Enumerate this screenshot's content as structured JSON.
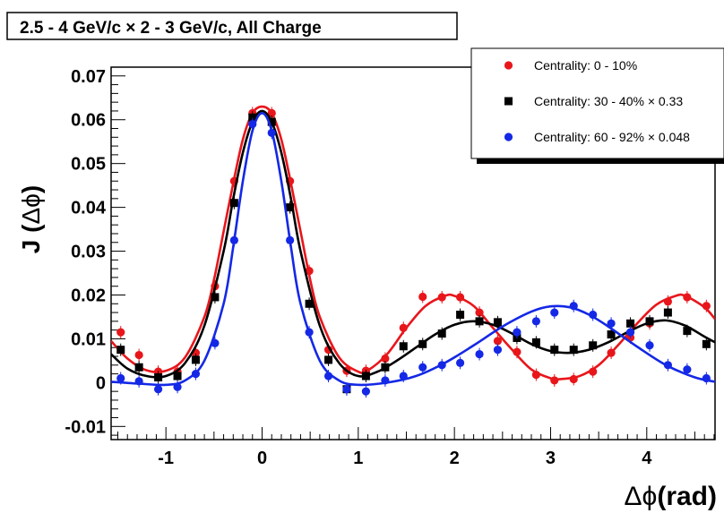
{
  "chart_data": {
    "type": "scatter",
    "title": "2.5 - 4 GeV/c × 2 - 3 GeV/c,  All Charge",
    "xlabel_prefix": "Δϕ",
    "xlabel_suffix": "(rad)",
    "ylabel_prefix": "J (",
    "ylabel_symbol": "Δϕ",
    "ylabel_suffix": ")",
    "xlim": [
      -1.57,
      4.71
    ],
    "ylim": [
      -0.013,
      0.072
    ],
    "xticks": [
      -1,
      0,
      1,
      2,
      3,
      4
    ],
    "xtick_labels": [
      "-1",
      "0",
      "1",
      "2",
      "3",
      "4"
    ],
    "yticks": [
      -0.01,
      0,
      0.01,
      0.02,
      0.03,
      0.04,
      0.05,
      0.06,
      0.07
    ],
    "ytick_labels": [
      "-0.01",
      "0",
      "0.01",
      "0.02",
      "0.03",
      "0.04",
      "0.05",
      "0.06",
      "0.07"
    ],
    "legend_position": "top-right",
    "series": [
      {
        "name": "Centrality:  0 - 10%",
        "color": "#e8161b",
        "marker": "circle",
        "x": [
          -1.47,
          -1.28,
          -1.08,
          -0.88,
          -0.69,
          -0.49,
          -0.29,
          -0.1,
          0.1,
          0.29,
          0.49,
          0.69,
          0.88,
          1.08,
          1.28,
          1.47,
          1.67,
          1.87,
          2.06,
          2.26,
          2.45,
          2.65,
          2.85,
          3.04,
          3.24,
          3.44,
          3.63,
          3.83,
          4.03,
          4.22,
          4.42,
          4.62
        ],
        "y": [
          0.0115,
          0.0063,
          0.0025,
          0.0025,
          0.0068,
          0.022,
          0.046,
          0.0615,
          0.0615,
          0.046,
          0.0255,
          0.0075,
          0.0027,
          0.0027,
          0.0055,
          0.0125,
          0.0196,
          0.0195,
          0.0195,
          0.016,
          0.0095,
          0.007,
          0.0018,
          0.0005,
          0.0008,
          0.0025,
          0.0068,
          0.0103,
          0.0135,
          0.0185,
          0.0195,
          0.0175
        ],
        "fit_x": [
          -1.57,
          -1.4,
          -1.2,
          -1.0,
          -0.8,
          -0.6,
          -0.5,
          -0.4,
          -0.3,
          -0.2,
          -0.1,
          0,
          0.1,
          0.2,
          0.3,
          0.4,
          0.5,
          0.6,
          0.8,
          1.0,
          1.1,
          1.3,
          1.5,
          1.7,
          1.9,
          2.0,
          2.2,
          2.4,
          2.6,
          2.8,
          3.0,
          3.1,
          3.3,
          3.5,
          3.7,
          3.9,
          4.1,
          4.3,
          4.4,
          4.6,
          4.71
        ],
        "fit_y": [
          0.0095,
          0.0055,
          0.0028,
          0.0027,
          0.0058,
          0.015,
          0.0235,
          0.0345,
          0.0455,
          0.0555,
          0.0615,
          0.063,
          0.0615,
          0.0555,
          0.0455,
          0.0345,
          0.0235,
          0.015,
          0.0058,
          0.0025,
          0.0028,
          0.0065,
          0.0125,
          0.0175,
          0.0198,
          0.0198,
          0.0175,
          0.0125,
          0.0075,
          0.003,
          0.001,
          0.0008,
          0.0015,
          0.004,
          0.0085,
          0.0135,
          0.0178,
          0.0198,
          0.0198,
          0.0172,
          0.0145
        ]
      },
      {
        "name": "Centrality: 30 - 40% × 0.33",
        "color": "#000000",
        "marker": "square",
        "x": [
          -1.47,
          -1.28,
          -1.08,
          -0.88,
          -0.69,
          -0.49,
          -0.29,
          -0.1,
          0.1,
          0.29,
          0.49,
          0.69,
          0.88,
          1.08,
          1.28,
          1.47,
          1.67,
          1.87,
          2.06,
          2.26,
          2.45,
          2.65,
          2.85,
          3.04,
          3.24,
          3.44,
          3.63,
          3.83,
          4.03,
          4.22,
          4.42,
          4.62
        ],
        "y": [
          0.0075,
          0.0035,
          0.0012,
          0.0015,
          0.0052,
          0.0195,
          0.041,
          0.0605,
          0.0595,
          0.04,
          0.018,
          0.0052,
          -0.0015,
          0.0015,
          0.0035,
          0.0083,
          0.0088,
          0.0112,
          0.0155,
          0.014,
          0.0138,
          0.0102,
          0.0092,
          0.0075,
          0.0075,
          0.0085,
          0.011,
          0.0135,
          0.014,
          0.016,
          0.0118,
          0.0088
        ],
        "fit_x": [
          -1.57,
          -1.4,
          -1.2,
          -1.0,
          -0.8,
          -0.6,
          -0.4,
          -0.3,
          -0.2,
          -0.1,
          0,
          0.1,
          0.2,
          0.3,
          0.4,
          0.6,
          0.8,
          1.0,
          1.2,
          1.4,
          1.6,
          1.8,
          2.0,
          2.2,
          2.4,
          2.6,
          2.8,
          3.0,
          3.2,
          3.4,
          3.6,
          3.8,
          4.0,
          4.2,
          4.4,
          4.6,
          4.71
        ],
        "fit_y": [
          0.0065,
          0.0032,
          0.0015,
          0.0015,
          0.0045,
          0.013,
          0.03,
          0.042,
          0.0525,
          0.0595,
          0.062,
          0.0595,
          0.0525,
          0.042,
          0.03,
          0.013,
          0.0045,
          0.0015,
          0.0025,
          0.005,
          0.008,
          0.011,
          0.0132,
          0.014,
          0.0132,
          0.0112,
          0.0088,
          0.0072,
          0.0068,
          0.0075,
          0.0092,
          0.0115,
          0.0135,
          0.0142,
          0.013,
          0.0105,
          0.0092
        ]
      },
      {
        "name": "Centrality: 60 - 92% × 0.048",
        "color": "#1428e6",
        "marker": "circle",
        "x": [
          -1.47,
          -1.28,
          -1.08,
          -0.88,
          -0.69,
          -0.49,
          -0.29,
          -0.1,
          0.1,
          0.29,
          0.49,
          0.69,
          0.88,
          1.08,
          1.28,
          1.47,
          1.67,
          1.87,
          2.06,
          2.26,
          2.45,
          2.65,
          2.85,
          3.04,
          3.24,
          3.44,
          3.63,
          3.83,
          4.03,
          4.22,
          4.42,
          4.62
        ],
        "y": [
          0.001,
          0.0003,
          -0.0015,
          -0.001,
          0.002,
          0.009,
          0.0325,
          0.059,
          0.057,
          0.0325,
          0.0115,
          0.0015,
          -0.0015,
          -0.002,
          0.0005,
          0.0015,
          0.0035,
          0.004,
          0.0045,
          0.0065,
          0.0075,
          0.0115,
          0.014,
          0.016,
          0.0175,
          0.0155,
          0.0135,
          0.0115,
          0.0085,
          0.004,
          0.003,
          0.001
        ],
        "fit_x": [
          -1.57,
          -1.3,
          -1.0,
          -0.8,
          -0.6,
          -0.4,
          -0.3,
          -0.2,
          -0.1,
          0,
          0.1,
          0.2,
          0.3,
          0.4,
          0.6,
          0.8,
          1.0,
          1.3,
          1.6,
          1.9,
          2.2,
          2.5,
          2.8,
          3.0,
          3.2,
          3.4,
          3.6,
          3.9,
          4.2,
          4.5,
          4.71
        ],
        "fit_y": [
          0.0002,
          -0.0002,
          -0.0005,
          0.0005,
          0.005,
          0.018,
          0.031,
          0.046,
          0.0575,
          0.0615,
          0.0575,
          0.046,
          0.031,
          0.018,
          0.005,
          0.0005,
          -0.0005,
          0.0,
          0.0015,
          0.0045,
          0.0085,
          0.0128,
          0.0162,
          0.0174,
          0.0172,
          0.0155,
          0.0128,
          0.0082,
          0.004,
          0.0012,
          0.0002
        ]
      }
    ]
  }
}
